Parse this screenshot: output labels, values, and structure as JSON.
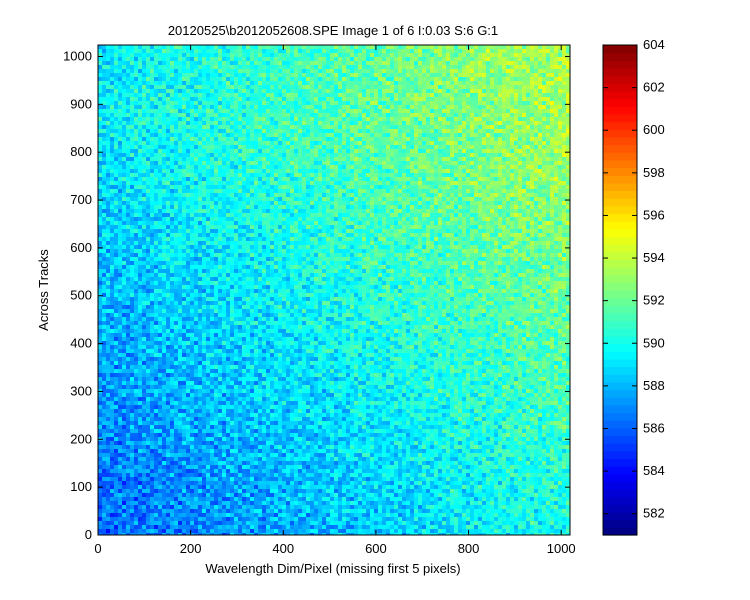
{
  "chart_data": {
    "type": "heatmap",
    "title": "20120525\\b2012052608.SPE  Image 1 of 6  I:0.03  S:6  G:1",
    "xlabel": "Wavelength Dim/Pixel (missing first 5 pixels)",
    "ylabel": "Across Tracks",
    "xlim": [
      0,
      1019
    ],
    "ylim": [
      0,
      1024
    ],
    "x_ticks": [
      0,
      200,
      400,
      600,
      800,
      1000
    ],
    "y_ticks": [
      0,
      100,
      200,
      300,
      400,
      500,
      600,
      700,
      800,
      900,
      1000
    ],
    "colorbar": {
      "colormap": "jet",
      "clim": [
        581,
        604
      ],
      "ticks": [
        582,
        584,
        586,
        588,
        590,
        592,
        594,
        596,
        598,
        600,
        602,
        604
      ]
    },
    "intensity_trend": {
      "low_corner": "bottom-left",
      "high_corner": "top-right",
      "approx_min": 586,
      "approx_max": 593.5
    },
    "grid": false
  }
}
